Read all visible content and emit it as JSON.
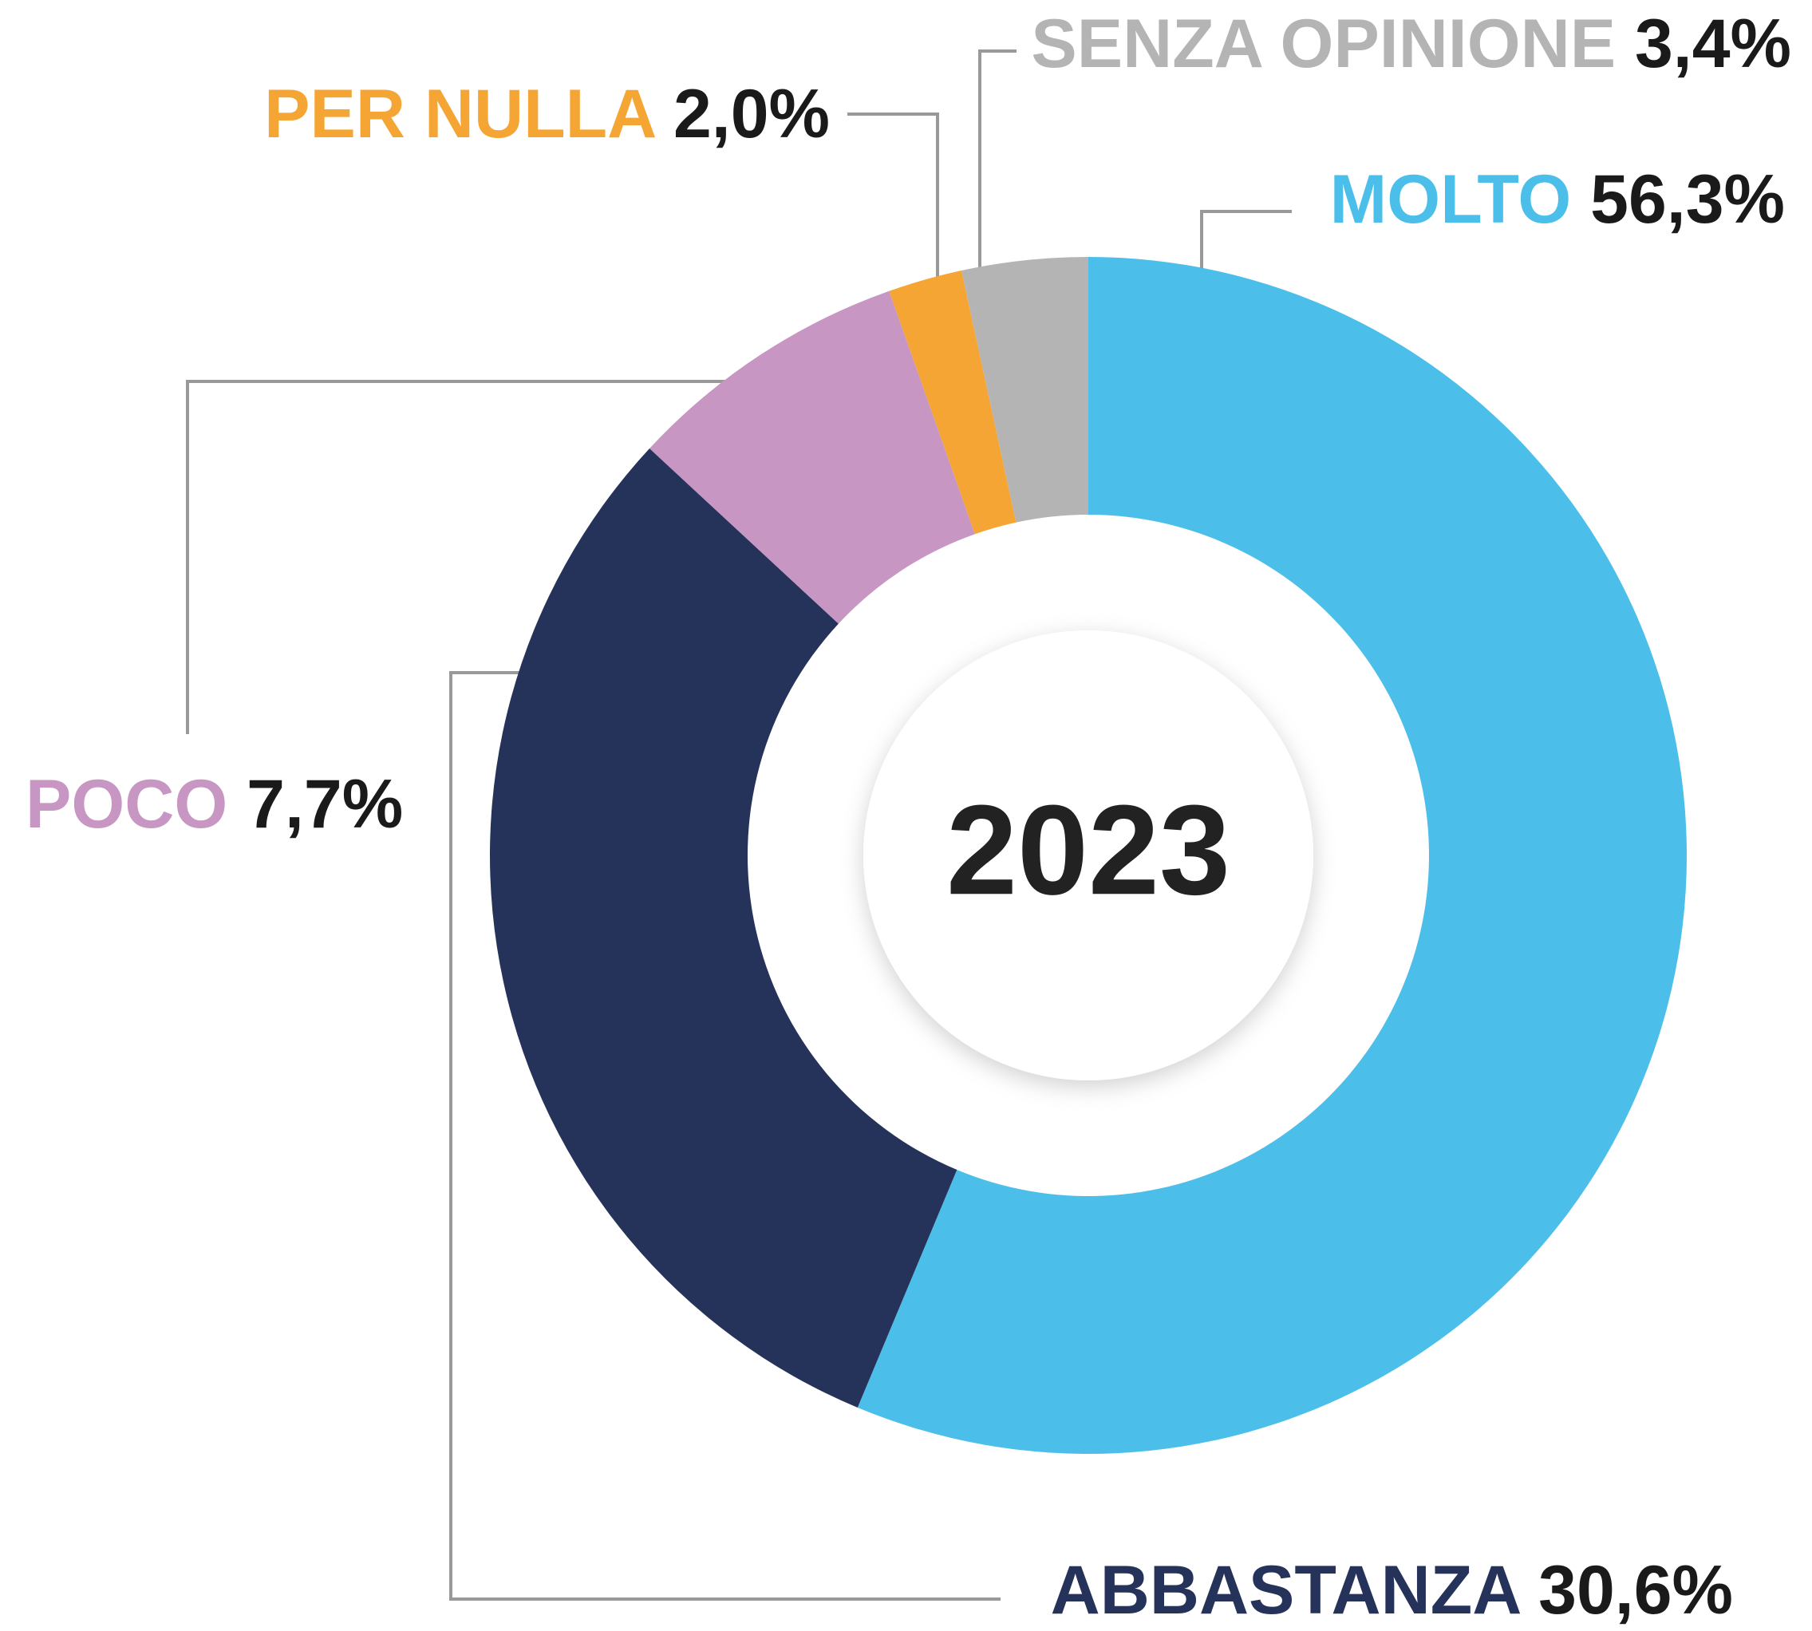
{
  "chart_data": {
    "type": "donut",
    "center_label": "2023",
    "categories": [
      "MOLTO",
      "ABBASTANZA",
      "POCO",
      "PER NULLA",
      "SENZA OPINIONE"
    ],
    "values": [
      56.3,
      30.6,
      7.7,
      2.0,
      3.4
    ],
    "value_labels": [
      "56,3%",
      "30,6%",
      "7,7%",
      "2,0%",
      "3,4%"
    ],
    "colors": [
      "#4bbfea",
      "#25325a",
      "#c796c3",
      "#f5a533",
      "#b4b4b4"
    ]
  }
}
